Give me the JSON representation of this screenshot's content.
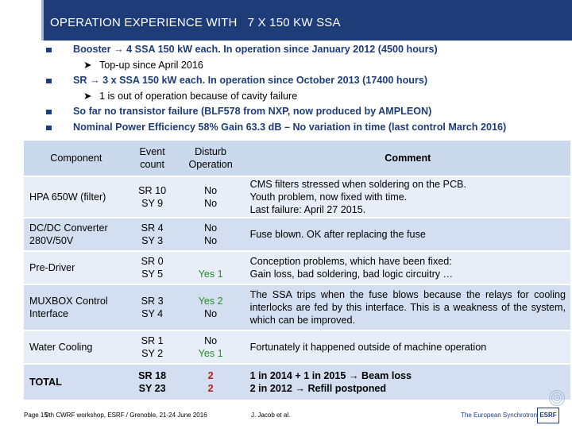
{
  "header": {
    "title": "OPERATION EXPERIENCE WITH   7 X 150 KW SSA"
  },
  "bullets": [
    {
      "text": "Booster → 4 SSA 150 kW each. In operation since January 2012 (4500 hours)",
      "sub": "Top-up since April 2016"
    },
    {
      "text": "SR → 3 x SSA 150 kW each.  In operation since October 2013 (17400 hours)",
      "sub": "1 is out of operation because of cavity failure"
    },
    {
      "text": "So far no transistor failure (BLF578 from NXP, now produced by AMPLEON)"
    },
    {
      "text": "Nominal Power Efficiency 58%  Gain 63.3 dB – No variation in time (last control March 2016)"
    }
  ],
  "table": {
    "headers": {
      "component": "Component",
      "count": "Event count",
      "disturb": "Disturb Operation",
      "comment": "Comment"
    },
    "rows": [
      {
        "component": "HPA  650W (filter)",
        "count": [
          "SR 10",
          "SY  9"
        ],
        "disturb": [
          "No",
          "No"
        ],
        "comment": [
          "CMS filters stressed when soldering on the PCB.",
          "Youth problem, now fixed with time.",
          "Last failure:  April 27 2015."
        ]
      },
      {
        "component": "DC/DC Converter 280V/50V",
        "count": [
          "SR  4",
          "SY  3"
        ],
        "disturb": [
          "No",
          "No"
        ],
        "comment": [
          "Fuse blown. OK after replacing the fuse"
        ]
      },
      {
        "component": "Pre-Driver",
        "count": [
          "SR  0",
          "SY  5"
        ],
        "disturb": [
          "",
          "Yes  1"
        ],
        "comment": [
          "Conception problems, which have been fixed:",
          "Gain loss, bad soldering, bad logic circuitry …"
        ]
      },
      {
        "component": "MUXBOX Control Interface",
        "count": [
          "SR  3",
          "SY  4"
        ],
        "disturb": [
          "Yes  2",
          "No"
        ],
        "comment": [
          "The SSA trips when the fuse blows because the relays for cooling interlocks are fed by this interface. This is a weakness of the system, which can be improved."
        ]
      },
      {
        "component": "Water Cooling",
        "count": [
          "SR  1",
          "SY  2"
        ],
        "disturb": [
          "No",
          "Yes  1"
        ],
        "comment": [
          "Fortunately it happened outside of machine operation"
        ]
      },
      {
        "component": "TOTAL",
        "count": [
          "SR 18",
          "SY 23"
        ],
        "disturb": [
          "2",
          "2"
        ],
        "comment": [
          "1 in 2014 + 1 in 2015 → Beam loss",
          "2 in 2012 → Refill postponed"
        ]
      }
    ]
  },
  "footer": {
    "page": "Page 15",
    "workshop": "9th CWRF workshop, ESRF / Grenoble, 21-24 June 2016",
    "author": "J. Jacob et al.",
    "org": "The European Synchrotron",
    "logo": "ESRF"
  },
  "colors": {
    "navy": "#1e3d78",
    "header_fill": "#cbd9ec",
    "row_fill": "#e8eef7",
    "green": "#2a8b2a",
    "red": "#c01818"
  }
}
